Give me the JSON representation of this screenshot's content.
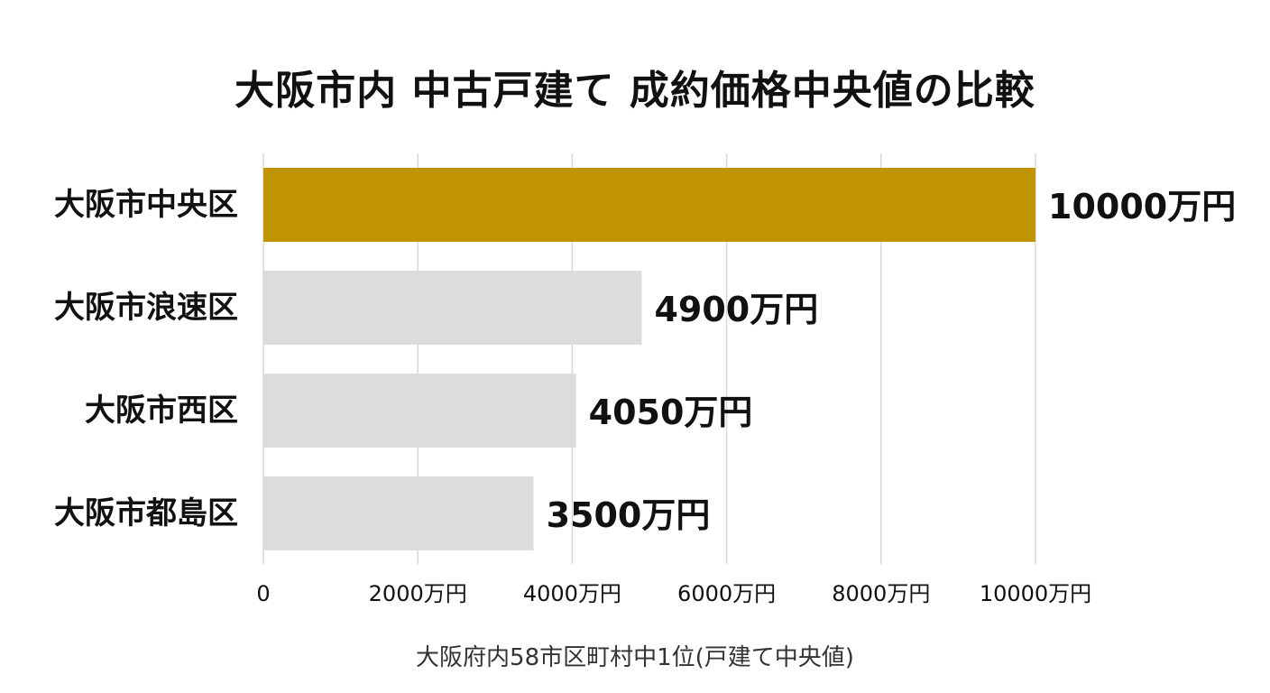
{
  "chart_data": {
    "type": "bar",
    "orientation": "horizontal",
    "title": "大阪市内 中古戸建て 成約価格中央値の比較",
    "note": "大阪府内58市区町村中1位(戸建て中央値)",
    "categories": [
      "大阪市中央区",
      "大阪市浪速区",
      "大阪市西区",
      "大阪市都島区"
    ],
    "values": [
      10000,
      4900,
      4050,
      3500
    ],
    "value_labels": [
      "10000万円",
      "4900万円",
      "4050万円",
      "3500万円"
    ],
    "xlim": [
      0,
      10000
    ],
    "x_ticks": [
      0,
      2000,
      4000,
      6000,
      8000,
      10000
    ],
    "x_tick_labels": [
      "0",
      "2000万円",
      "4000万円",
      "6000万円",
      "8000万円",
      "10000万円"
    ],
    "grid": true,
    "legend": "none",
    "colors": {
      "highlight": "#C09400",
      "default": "#DCDCDC",
      "grid": "#D9D9D9"
    },
    "highlight_index": 0
  }
}
